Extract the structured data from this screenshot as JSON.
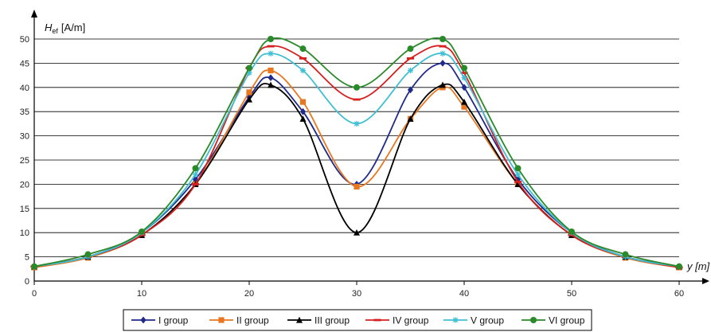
{
  "chart_data": {
    "type": "line",
    "ylabel_main": "H",
    "ylabel_sub": "ef",
    "ylabel_unit": "[A/m]",
    "xlabel": "y [m]",
    "x": [
      0,
      5,
      10,
      15,
      20,
      22,
      25,
      30,
      35,
      38,
      40,
      45,
      50,
      55,
      60
    ],
    "xlim": [
      0,
      60
    ],
    "ylim": [
      0,
      50
    ],
    "xticks": [
      0,
      10,
      20,
      30,
      40,
      50,
      60
    ],
    "yticks": [
      0,
      5,
      10,
      15,
      20,
      25,
      30,
      35,
      40,
      45,
      50
    ],
    "grid": "horizontal",
    "legend_position": "bottom",
    "series": [
      {
        "name": "I group",
        "color": "#1f2a8a",
        "marker": "diamond",
        "values": [
          3,
          5,
          10,
          21,
          38,
          42,
          35,
          20,
          39.5,
          45,
          40,
          21,
          10,
          5,
          3
        ]
      },
      {
        "name": "II group",
        "color": "#e87722",
        "marker": "square",
        "values": [
          2.8,
          4.8,
          9.5,
          20,
          39,
          43.5,
          37,
          19.5,
          33.5,
          40,
          36,
          20,
          9.5,
          4.8,
          2.8
        ]
      },
      {
        "name": "III group",
        "color": "#000000",
        "marker": "triangle",
        "values": [
          3,
          5,
          9.5,
          20,
          37.5,
          40.5,
          33.5,
          10,
          33.5,
          40.5,
          37,
          20,
          9.5,
          5,
          3
        ]
      },
      {
        "name": "IV group",
        "color": "#d62020",
        "marker": "dash",
        "values": [
          3,
          5,
          9.5,
          20,
          44,
          48.5,
          46,
          37.5,
          46,
          48.5,
          43,
          20.5,
          9.5,
          5,
          2.8
        ]
      },
      {
        "name": "V group",
        "color": "#3fbfd4",
        "marker": "star",
        "values": [
          3,
          5,
          10,
          22,
          43,
          47,
          43.5,
          32.5,
          43.5,
          47,
          42,
          22,
          10,
          5,
          3
        ]
      },
      {
        "name": "VI group",
        "color": "#2a8a2a",
        "marker": "circle",
        "values": [
          3,
          5.5,
          10.2,
          23.3,
          44,
          50,
          48,
          40,
          48,
          50,
          44,
          23.3,
          10.2,
          5.5,
          3
        ]
      }
    ]
  }
}
